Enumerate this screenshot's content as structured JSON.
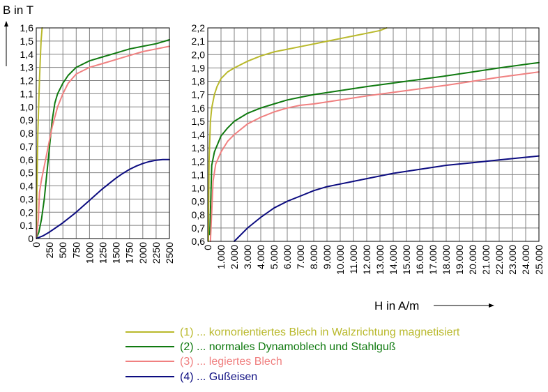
{
  "y_title": "B in T",
  "x_title": "H in A/m",
  "legend": [
    {
      "label": "(1) ... kornorientiertes Blech in Walzrichtung magnetisiert",
      "color": "#b9b92c"
    },
    {
      "label": "(2) ... normales Dynamoblech und Stahlguß",
      "color": "#107a10"
    },
    {
      "label": "(3) ... legiertes Blech",
      "color": "#f08080"
    },
    {
      "label": "(4) ... Gußeisen",
      "color": "#0c0c80"
    }
  ],
  "chart_data": [
    {
      "type": "line",
      "ylabel": "B in T",
      "xlim": [
        0,
        2500
      ],
      "ylim": [
        0,
        1.6
      ],
      "grid": true,
      "x_ticks": [
        "0",
        "250",
        "500",
        "750",
        "1000",
        "1250",
        "1500",
        "1750",
        "2000",
        "2250",
        "2500"
      ],
      "y_ticks": [
        "0",
        "0,1",
        "0,2",
        "0,3",
        "0,4",
        "0,5",
        "0,6",
        "0,7",
        "0,8",
        "0,9",
        "1,0",
        "1,1",
        "1,2",
        "1,3",
        "1,4",
        "1,5",
        "1,6"
      ],
      "series": [
        {
          "name": "(1) ... kornorientiertes Blech in Walzrichtung magnetisiert",
          "color": "#b9b92c",
          "x": [
            0,
            10,
            20,
            30,
            45,
            60,
            75,
            90,
            110
          ],
          "y": [
            0,
            0.3,
            0.55,
            0.8,
            1.0,
            1.2,
            1.35,
            1.5,
            1.6
          ]
        },
        {
          "name": "(2) ... normales Dynamoblech und Stahlguß",
          "color": "#107a10",
          "x": [
            0,
            50,
            100,
            150,
            200,
            250,
            300,
            350,
            400,
            500,
            600,
            750,
            1000,
            1250,
            1500,
            1750,
            2000,
            2250,
            2500
          ],
          "y": [
            0,
            0.05,
            0.15,
            0.3,
            0.5,
            0.7,
            0.9,
            1.03,
            1.1,
            1.18,
            1.24,
            1.3,
            1.35,
            1.38,
            1.41,
            1.44,
            1.46,
            1.48,
            1.51
          ]
        },
        {
          "name": "(3) ... legiertes Blech",
          "color": "#f08080",
          "x": [
            0,
            40,
            60,
            100,
            150,
            200,
            250,
            300,
            400,
            500,
            600,
            750,
            1000,
            1250,
            1500,
            1750,
            2000,
            2250,
            2500
          ],
          "y": [
            0,
            0.15,
            0.35,
            0.45,
            0.55,
            0.65,
            0.75,
            0.85,
            1.0,
            1.1,
            1.18,
            1.25,
            1.3,
            1.33,
            1.36,
            1.39,
            1.42,
            1.44,
            1.46
          ]
        },
        {
          "name": "(4) ... Gußeisen",
          "color": "#0c0c80",
          "x": [
            0,
            125,
            250,
            375,
            500,
            625,
            750,
            875,
            1000,
            1125,
            1250,
            1375,
            1500,
            1625,
            1750,
            1875,
            2000,
            2125,
            2250,
            2375,
            2500
          ],
          "y": [
            0,
            0.02,
            0.05,
            0.085,
            0.12,
            0.16,
            0.2,
            0.245,
            0.29,
            0.335,
            0.38,
            0.42,
            0.46,
            0.495,
            0.525,
            0.55,
            0.57,
            0.585,
            0.595,
            0.6,
            0.6
          ]
        }
      ]
    },
    {
      "type": "line",
      "xlabel": "H in A/m",
      "xlim": [
        0,
        25000
      ],
      "ylim": [
        0.6,
        2.2
      ],
      "grid": true,
      "x_ticks": [
        "0",
        "1.000",
        "2.000",
        "3.000",
        "4.000",
        "5.000",
        "6.000",
        "7.000",
        "8.000",
        "9.000",
        "10.000",
        "11.000",
        "12.000",
        "13.000",
        "14.000",
        "15.000",
        "16.000",
        "17.000",
        "18.000",
        "19.000",
        "20.000",
        "21.000",
        "22.000",
        "23.000",
        "24.000",
        "25.000"
      ],
      "y_ticks": [
        "0,6",
        "0,7",
        "0,8",
        "0,9",
        "1,0",
        "1,1",
        "1,2",
        "1,3",
        "1,4",
        "1,5",
        "1,6",
        "1,7",
        "1,8",
        "1,9",
        "2,0",
        "2,1",
        "2,2"
      ],
      "series": [
        {
          "name": "(1) ... kornorientiertes Blech in Walzrichtung magnetisiert",
          "color": "#b9b92c",
          "x": [
            50,
            100,
            200,
            300,
            500,
            700,
            1000,
            1500,
            2000,
            3000,
            4000,
            5000,
            6000,
            7000,
            8000,
            9000,
            10000,
            11000,
            12000,
            13000,
            13500
          ],
          "y": [
            0.6,
            1.2,
            1.5,
            1.6,
            1.7,
            1.76,
            1.82,
            1.87,
            1.9,
            1.95,
            1.99,
            2.02,
            2.04,
            2.06,
            2.08,
            2.1,
            2.12,
            2.14,
            2.16,
            2.18,
            2.2
          ]
        },
        {
          "name": "(2) ... normales Dynamoblech und Stahlguß",
          "color": "#107a10",
          "x": [
            150,
            300,
            500,
            1000,
            1500,
            2000,
            3000,
            4000,
            5000,
            6000,
            7000,
            8000,
            10000,
            12000,
            15000,
            18000,
            20000,
            22000,
            25000
          ],
          "y": [
            0.65,
            1.17,
            1.27,
            1.39,
            1.45,
            1.5,
            1.56,
            1.6,
            1.63,
            1.66,
            1.68,
            1.7,
            1.73,
            1.76,
            1.8,
            1.84,
            1.87,
            1.9,
            1.94
          ]
        },
        {
          "name": "(3) ... legiertes Blech",
          "color": "#f08080",
          "x": [
            200,
            400,
            600,
            1000,
            1500,
            2000,
            3000,
            4000,
            5000,
            6000,
            7000,
            8000,
            10000,
            12000,
            15000,
            18000,
            20000,
            22000,
            25000
          ],
          "y": [
            0.6,
            1.05,
            1.18,
            1.27,
            1.35,
            1.4,
            1.48,
            1.53,
            1.57,
            1.6,
            1.62,
            1.63,
            1.66,
            1.69,
            1.73,
            1.77,
            1.8,
            1.83,
            1.87
          ]
        },
        {
          "name": "(4) ... Gußeisen",
          "color": "#0c0c80",
          "x": [
            2000,
            3000,
            4000,
            5000,
            6000,
            7000,
            8000,
            9000,
            10000,
            12000,
            14000,
            16000,
            18000,
            20000,
            22000,
            24000,
            25000
          ],
          "y": [
            0.6,
            0.7,
            0.78,
            0.85,
            0.9,
            0.94,
            0.98,
            1.01,
            1.03,
            1.07,
            1.11,
            1.14,
            1.17,
            1.19,
            1.21,
            1.23,
            1.24
          ]
        }
      ]
    }
  ]
}
